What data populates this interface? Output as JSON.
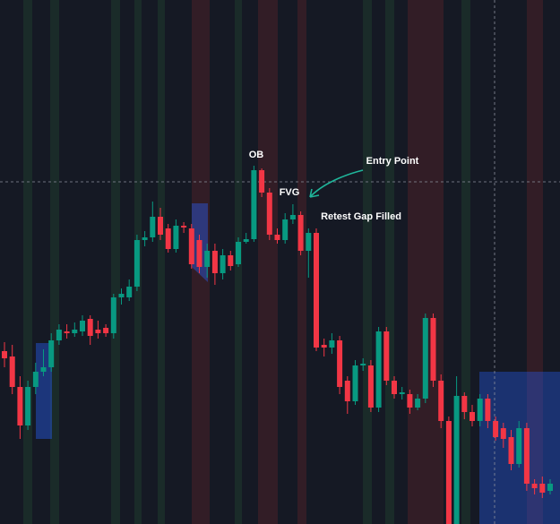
{
  "chart_data": {
    "type": "candlestick",
    "annotations": [
      "OB",
      "FVG",
      "Entry Point",
      "Retest Gap Filled"
    ],
    "up_color": "#089981",
    "down_color": "#f23645",
    "ylim": [
      0,
      585
    ],
    "open": [
      193,
      187,
      153,
      110,
      153,
      170,
      175,
      205,
      215,
      213,
      215,
      229,
      217,
      219,
      213,
      253,
      253,
      265,
      317,
      320,
      343,
      330,
      307,
      333,
      330,
      317,
      287,
      305,
      280,
      300,
      290,
      315,
      318,
      395,
      370,
      323,
      317,
      340,
      345,
      305,
      325,
      200,
      197,
      205,
      160,
      137,
      177,
      177,
      130,
      215,
      160,
      145,
      145,
      130,
      140,
      230,
      160,
      115,
      0,
      143,
      125,
      115,
      140,
      115,
      107,
      97,
      67,
      107,
      45,
      45,
      37
    ],
    "high": [
      203,
      200,
      165,
      160,
      180,
      195,
      213,
      223,
      223,
      225,
      233,
      233,
      227,
      223,
      257,
      263,
      273,
      323,
      327,
      360,
      353,
      335,
      340,
      337,
      335,
      323,
      313,
      313,
      307,
      305,
      320,
      325,
      400,
      397,
      375,
      330,
      347,
      357,
      349,
      330,
      330,
      207,
      213,
      210,
      165,
      183,
      185,
      183,
      220,
      220,
      165,
      153,
      150,
      145,
      235,
      235,
      167,
      120,
      165,
      147,
      133,
      145,
      145,
      120,
      113,
      105,
      115,
      113,
      50,
      53,
      50
    ],
    "low": [
      175,
      145,
      95,
      105,
      145,
      165,
      170,
      200,
      207,
      209,
      210,
      200,
      207,
      209,
      207,
      245,
      249,
      260,
      310,
      315,
      317,
      303,
      303,
      325,
      285,
      280,
      275,
      267,
      273,
      283,
      287,
      313,
      315,
      365,
      317,
      313,
      313,
      335,
      300,
      275,
      193,
      187,
      190,
      145,
      123,
      133,
      171,
      125,
      125,
      155,
      140,
      139,
      123,
      127,
      135,
      153,
      107,
      0,
      0,
      117,
      109,
      109,
      107,
      93,
      85,
      60,
      63,
      37,
      33,
      29,
      33
    ],
    "close": [
      185,
      153,
      110,
      153,
      170,
      175,
      205,
      217,
      213,
      217,
      227,
      210,
      213,
      213,
      253,
      257,
      265,
      317,
      320,
      343,
      323,
      307,
      333,
      331,
      290,
      287,
      305,
      280,
      300,
      288,
      315,
      318,
      395,
      370,
      323,
      317,
      340,
      345,
      305,
      325,
      197,
      197,
      205,
      153,
      137,
      177,
      179,
      130,
      215,
      160,
      145,
      147,
      130,
      140,
      230,
      160,
      115,
      0,
      143,
      125,
      115,
      140,
      115,
      97,
      95,
      67,
      107,
      45,
      40,
      35,
      45
    ]
  }
}
